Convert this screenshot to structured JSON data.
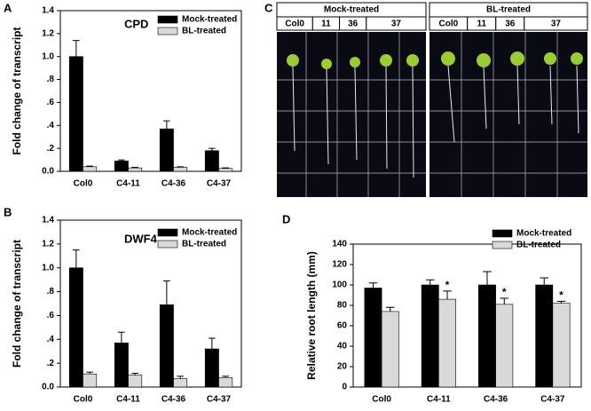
{
  "chart_data": [
    {
      "type": "bar",
      "panel": "A",
      "title": "CPD",
      "ylabel": "Fold change of transcript",
      "categories": [
        "Col0",
        "C4-11",
        "C4-36",
        "C4-37"
      ],
      "series": [
        {
          "name": "Mock-treated",
          "color": "#000000",
          "values": [
            1.0,
            0.09,
            0.37,
            0.18
          ],
          "errors": [
            0.14,
            0.01,
            0.07,
            0.02
          ]
        },
        {
          "name": "BL-treated",
          "color": "#d9d9d9",
          "values": [
            0.04,
            0.03,
            0.035,
            0.025
          ],
          "errors": [
            0.005,
            0.005,
            0.005,
            0.005
          ]
        }
      ],
      "ylim": [
        0,
        1.4
      ],
      "yticks": [
        {
          "value": 0,
          "label": "0.0"
        },
        {
          "value": 0.2,
          "label": ".2"
        },
        {
          "value": 0.4,
          "label": ".4"
        },
        {
          "value": 0.6,
          "label": ".6"
        },
        {
          "value": 0.8,
          "label": ".8"
        },
        {
          "value": 1.0,
          "label": "1.0"
        },
        {
          "value": 1.2,
          "label": "1.2"
        },
        {
          "value": 1.4,
          "label": "1.4"
        }
      ],
      "legend": "upper right"
    },
    {
      "type": "bar",
      "panel": "B",
      "title": "DWF4",
      "ylabel": "Fold change of transcript",
      "categories": [
        "Col0",
        "C4-11",
        "C4-36",
        "C4-37"
      ],
      "series": [
        {
          "name": "Mock-treated",
          "color": "#000000",
          "values": [
            1.0,
            0.37,
            0.69,
            0.32
          ],
          "errors": [
            0.15,
            0.09,
            0.2,
            0.09
          ]
        },
        {
          "name": "BL-treated",
          "color": "#d9d9d9",
          "values": [
            0.11,
            0.1,
            0.07,
            0.08
          ],
          "errors": [
            0.015,
            0.015,
            0.02,
            0.01
          ]
        }
      ],
      "ylim": [
        0,
        1.4
      ],
      "yticks": [
        {
          "value": 0,
          "label": "0.0"
        },
        {
          "value": 0.2,
          "label": ".2"
        },
        {
          "value": 0.4,
          "label": ".4"
        },
        {
          "value": 0.6,
          "label": ".6"
        },
        {
          "value": 0.8,
          "label": ".8"
        },
        {
          "value": 1.0,
          "label": "1.0"
        },
        {
          "value": 1.2,
          "label": "1.2"
        },
        {
          "value": 1.4,
          "label": "1.4"
        }
      ],
      "legend": "upper right"
    },
    {
      "type": "bar",
      "panel": "D",
      "ylabel": "Relative root length (mm)",
      "categories": [
        "Col0",
        "C4-11",
        "C4-36",
        "C4-37"
      ],
      "series": [
        {
          "name": "Mock-treated",
          "color": "#000000",
          "values": [
            97,
            100,
            100,
            100
          ],
          "errors": [
            5,
            5,
            13,
            7
          ]
        },
        {
          "name": "BL-treated",
          "color": "#d9d9d9",
          "values": [
            74,
            86,
            81,
            82
          ],
          "errors": [
            4,
            8,
            6,
            2
          ],
          "markers": [
            null,
            "*",
            "*",
            "*"
          ]
        }
      ],
      "ylim": [
        0,
        140
      ],
      "yticks": [
        0,
        20,
        40,
        60,
        80,
        100,
        120,
        140
      ],
      "legend": "upper right"
    }
  ],
  "photo": {
    "panel": "C",
    "groups": [
      {
        "name": "Mock-treated",
        "columns": [
          "Col0",
          "11",
          "36",
          "37"
        ]
      },
      {
        "name": "BL-treated",
        "columns": [
          "Col0",
          "11",
          "36",
          "37"
        ]
      }
    ]
  }
}
